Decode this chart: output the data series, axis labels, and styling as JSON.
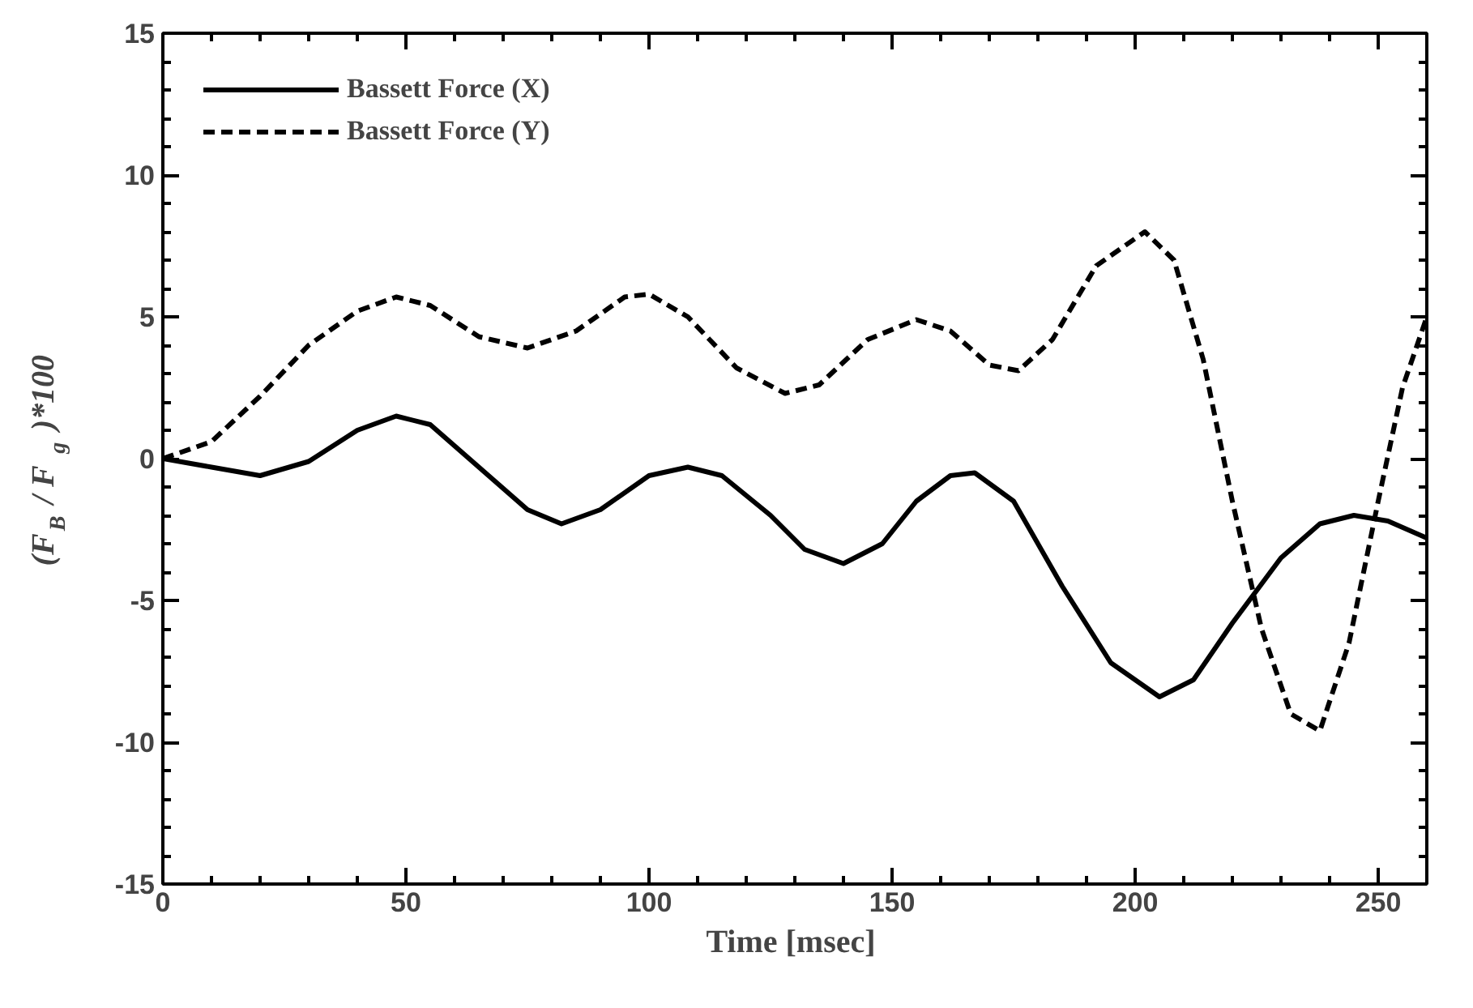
{
  "chart_data": {
    "type": "line",
    "xlabel": "Time  [msec]",
    "ylabel": "(F$_{B}$ / F$_{g}$)*100",
    "xlim": [
      0,
      260
    ],
    "xticks": [
      0,
      50,
      100,
      150,
      200,
      250
    ],
    "ylim": [
      -15,
      15
    ],
    "yticks": [
      -15,
      -10,
      -5,
      0,
      5,
      10,
      15
    ],
    "grid": false,
    "legend": "top left",
    "marker": "none",
    "series": [
      {
        "name": "Bassett Force (X)",
        "color": "#000000",
        "line_style": "solid",
        "x": [
          0,
          10,
          20,
          30,
          40,
          48,
          55,
          65,
          75,
          82,
          90,
          100,
          108,
          115,
          125,
          132,
          140,
          148,
          155,
          162,
          167,
          175,
          185,
          195,
          205,
          212,
          220,
          230,
          238,
          245,
          252,
          260
        ],
        "values": [
          0,
          -0.3,
          -0.6,
          -0.1,
          1.0,
          1.5,
          1.2,
          -0.3,
          -1.8,
          -2.3,
          -1.8,
          -0.6,
          -0.3,
          -0.6,
          -2.0,
          -3.2,
          -3.7,
          -3.0,
          -1.5,
          -0.6,
          -0.5,
          -1.5,
          -4.5,
          -7.2,
          -8.4,
          -7.8,
          -5.8,
          -3.5,
          -2.3,
          -2.0,
          -2.2,
          -2.8
        ]
      },
      {
        "name": "Bassett Force (Y)",
        "color": "#000000",
        "line_style": "dashed",
        "x": [
          0,
          10,
          20,
          30,
          40,
          48,
          55,
          65,
          75,
          85,
          95,
          100,
          108,
          118,
          128,
          135,
          145,
          155,
          162,
          170,
          176,
          183,
          192,
          202,
          208,
          214,
          220,
          226,
          232,
          238,
          244,
          250,
          255,
          260
        ],
        "values": [
          0,
          0.6,
          2.2,
          4.0,
          5.2,
          5.7,
          5.4,
          4.3,
          3.9,
          4.5,
          5.7,
          5.8,
          5.0,
          3.2,
          2.3,
          2.6,
          4.2,
          4.9,
          4.5,
          3.3,
          3.1,
          4.2,
          6.8,
          8.0,
          7.0,
          3.5,
          -1.5,
          -6.0,
          -9.0,
          -9.6,
          -6.5,
          -1.5,
          2.5,
          5.0
        ]
      }
    ]
  }
}
